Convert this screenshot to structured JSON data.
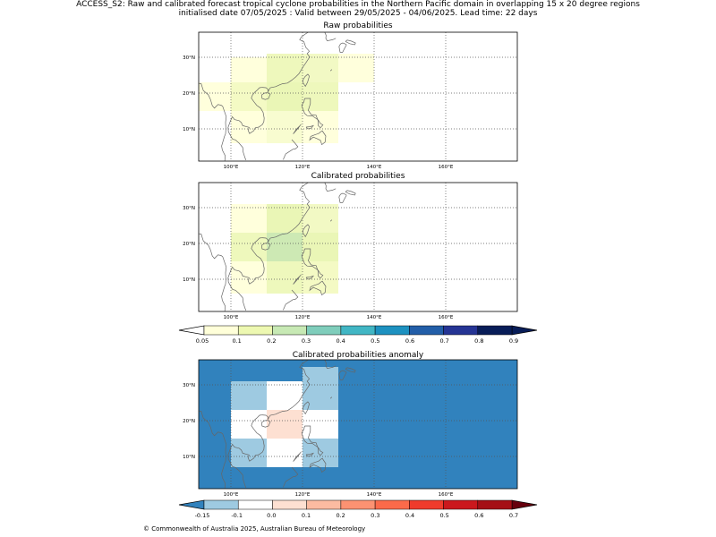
{
  "header": {
    "line1": "ACCESS_S2: Raw and calibrated forecast tropical cyclone probabilities in the Northern Pacific domain in overlapping 15 x 20 degree regions",
    "line2": "initialised date 07/05/2025 :  Valid between 29/05/2025 - 04/06/2025. Lead time: 22 days"
  },
  "footer": {
    "credit": "© Commonwealth of Australia 2025, Australian Bureau of Meteorology"
  },
  "map_extent": {
    "lon": [
      91,
      180
    ],
    "lat": [
      1,
      37
    ]
  },
  "lon_ticks": [
    {
      "value": 100,
      "label": "100°E"
    },
    {
      "value": 120,
      "label": "120°E"
    },
    {
      "value": 140,
      "label": "140°E"
    },
    {
      "value": 160,
      "label": "160°E"
    }
  ],
  "lat_ticks": [
    {
      "value": 30,
      "label": "30°N"
    },
    {
      "value": 20,
      "label": "20°N"
    },
    {
      "value": 10,
      "label": "10°N"
    }
  ],
  "panels": [
    {
      "id": "raw",
      "title": "Raw probabilities",
      "background": "",
      "cells": [
        {
          "lon": [
            100,
            110
          ],
          "lat": [
            30,
            20
          ],
          "color": "#ffffdc"
        },
        {
          "lon": [
            110,
            120
          ],
          "lat": [
            31,
            23
          ],
          "color": "#eef8bc"
        },
        {
          "lon": [
            120,
            130
          ],
          "lat": [
            31,
            23
          ],
          "color": "#f2f9c4"
        },
        {
          "lon": [
            130,
            140
          ],
          "lat": [
            31,
            23
          ],
          "color": "#ffffdc"
        },
        {
          "lon": [
            91,
            100
          ],
          "lat": [
            23,
            15
          ],
          "color": "#ffffdc"
        },
        {
          "lon": [
            100,
            110
          ],
          "lat": [
            23,
            15
          ],
          "color": "#f4fac4"
        },
        {
          "lon": [
            110,
            120
          ],
          "lat": [
            23,
            15
          ],
          "color": "#eaf6b6"
        },
        {
          "lon": [
            120,
            130
          ],
          "lat": [
            23,
            15
          ],
          "color": "#eef8bc"
        },
        {
          "lon": [
            100,
            110
          ],
          "lat": [
            15,
            6
          ],
          "color": "#ffffdc"
        },
        {
          "lon": [
            110,
            120
          ],
          "lat": [
            15,
            6
          ],
          "color": "#f8fcd0"
        },
        {
          "lon": [
            120,
            130
          ],
          "lat": [
            15,
            6
          ],
          "color": "#ffffdc"
        }
      ]
    },
    {
      "id": "calibrated",
      "title": "Calibrated probabilities",
      "background": "",
      "cells": [
        {
          "lon": [
            100,
            110
          ],
          "lat": [
            31,
            23
          ],
          "color": "#ffffdc"
        },
        {
          "lon": [
            110,
            120
          ],
          "lat": [
            31,
            23
          ],
          "color": "#eaf6b6"
        },
        {
          "lon": [
            120,
            130
          ],
          "lat": [
            31,
            23
          ],
          "color": "#f2f9c4"
        },
        {
          "lon": [
            100,
            110
          ],
          "lat": [
            23,
            15
          ],
          "color": "#eef8bc"
        },
        {
          "lon": [
            110,
            120
          ],
          "lat": [
            23,
            15
          ],
          "color": "#cde9b4"
        },
        {
          "lon": [
            120,
            130
          ],
          "lat": [
            23,
            15
          ],
          "color": "#eaf6b6"
        },
        {
          "lon": [
            100,
            110
          ],
          "lat": [
            15,
            6
          ],
          "color": "#ffffdc"
        },
        {
          "lon": [
            110,
            120
          ],
          "lat": [
            15,
            6
          ],
          "color": "#eef8bc"
        },
        {
          "lon": [
            120,
            130
          ],
          "lat": [
            15,
            6
          ],
          "color": "#f4fac4"
        }
      ]
    },
    {
      "id": "anomaly",
      "title": "Calibrated probabilities anomaly",
      "background": "#3182bd",
      "cells": [
        {
          "lon": [
            100,
            110
          ],
          "lat": [
            31,
            23
          ],
          "color": "#9ecae1"
        },
        {
          "lon": [
            110,
            120
          ],
          "lat": [
            31,
            23
          ],
          "color": "#ffffff"
        },
        {
          "lon": [
            120,
            130
          ],
          "lat": [
            35,
            23
          ],
          "color": "#9ecae1"
        },
        {
          "lon": [
            100,
            110
          ],
          "lat": [
            23,
            15
          ],
          "color": "#ffffff"
        },
        {
          "lon": [
            110,
            120
          ],
          "lat": [
            23,
            15
          ],
          "color": "#fde0d2"
        },
        {
          "lon": [
            120,
            130
          ],
          "lat": [
            23,
            15
          ],
          "color": "#ffffff"
        },
        {
          "lon": [
            100,
            110
          ],
          "lat": [
            15,
            7
          ],
          "color": "#9ecae1"
        },
        {
          "lon": [
            110,
            120
          ],
          "lat": [
            15,
            7
          ],
          "color": "#ffffff"
        },
        {
          "lon": [
            120,
            130
          ],
          "lat": [
            15,
            7
          ],
          "color": "#9ecae1"
        }
      ]
    }
  ],
  "colorbars": [
    {
      "id": "probability",
      "ticks": [
        "0.05",
        "0.1",
        "0.2",
        "0.3",
        "0.4",
        "0.5",
        "0.6",
        "0.7",
        "0.8",
        "0.9"
      ],
      "under": "#ffffff",
      "over": "#081d58",
      "colors": [
        "#ffffd9",
        "#edf8b1",
        "#c7e9b4",
        "#7fcdbb",
        "#41b6c4",
        "#1d91c0",
        "#225ea8",
        "#253494",
        "#081d58"
      ]
    },
    {
      "id": "anomaly",
      "ticks": [
        "-0.15",
        "-0.1",
        "0.0",
        "0.1",
        "0.2",
        "0.3",
        "0.4",
        "0.5",
        "0.6",
        "0.7"
      ],
      "under": "#3182bd",
      "over": "#67000d",
      "colors": [
        "#9ecae1",
        "#ffffff",
        "#fee0d2",
        "#fcbba1",
        "#fc9272",
        "#fb6a4a",
        "#ef3b2c",
        "#cb181d",
        "#a50f15"
      ]
    }
  ]
}
